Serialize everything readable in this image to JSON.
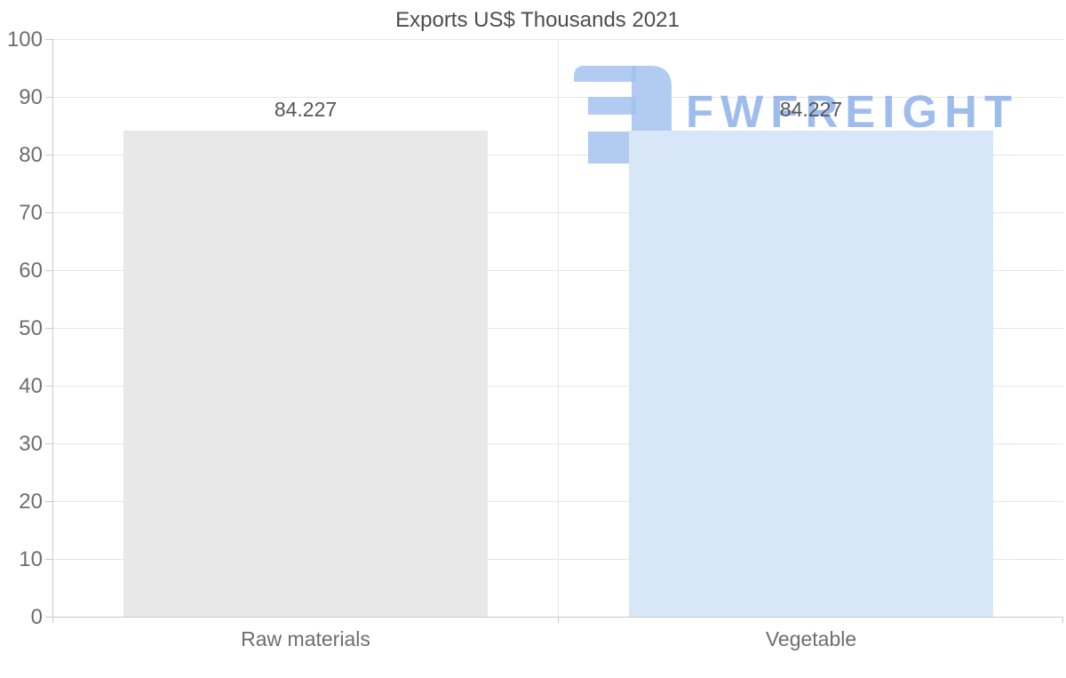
{
  "chart_data": {
    "type": "bar",
    "title": "Exports US$ Thousands 2021",
    "categories": [
      "Raw materials",
      "Vegetable"
    ],
    "values": [
      84.227,
      84.227
    ],
    "value_labels": [
      "84.227",
      "84.227"
    ],
    "bar_colors": [
      "#e8e8e8",
      "#d7e7f8"
    ],
    "xlabel": "",
    "ylabel": "",
    "ylim": [
      0,
      100
    ],
    "ytick_step": 10,
    "yticks": [
      0,
      10,
      20,
      30,
      40,
      50,
      60,
      70,
      80,
      90,
      100
    ],
    "grid": true,
    "legend": "none"
  },
  "watermark": {
    "text": "FWFREIGHT",
    "icon": "fwfreight-logo-icon",
    "color": "#86ade8",
    "icon_color": "#a3c2ef"
  },
  "colors": {
    "background": "#ffffff",
    "gridline": "#e6e6e6",
    "axis": "#c9c9c9",
    "title_text": "#4d4d4d",
    "axis_label_text": "#6e6e6e",
    "data_label_text": "#555658"
  }
}
